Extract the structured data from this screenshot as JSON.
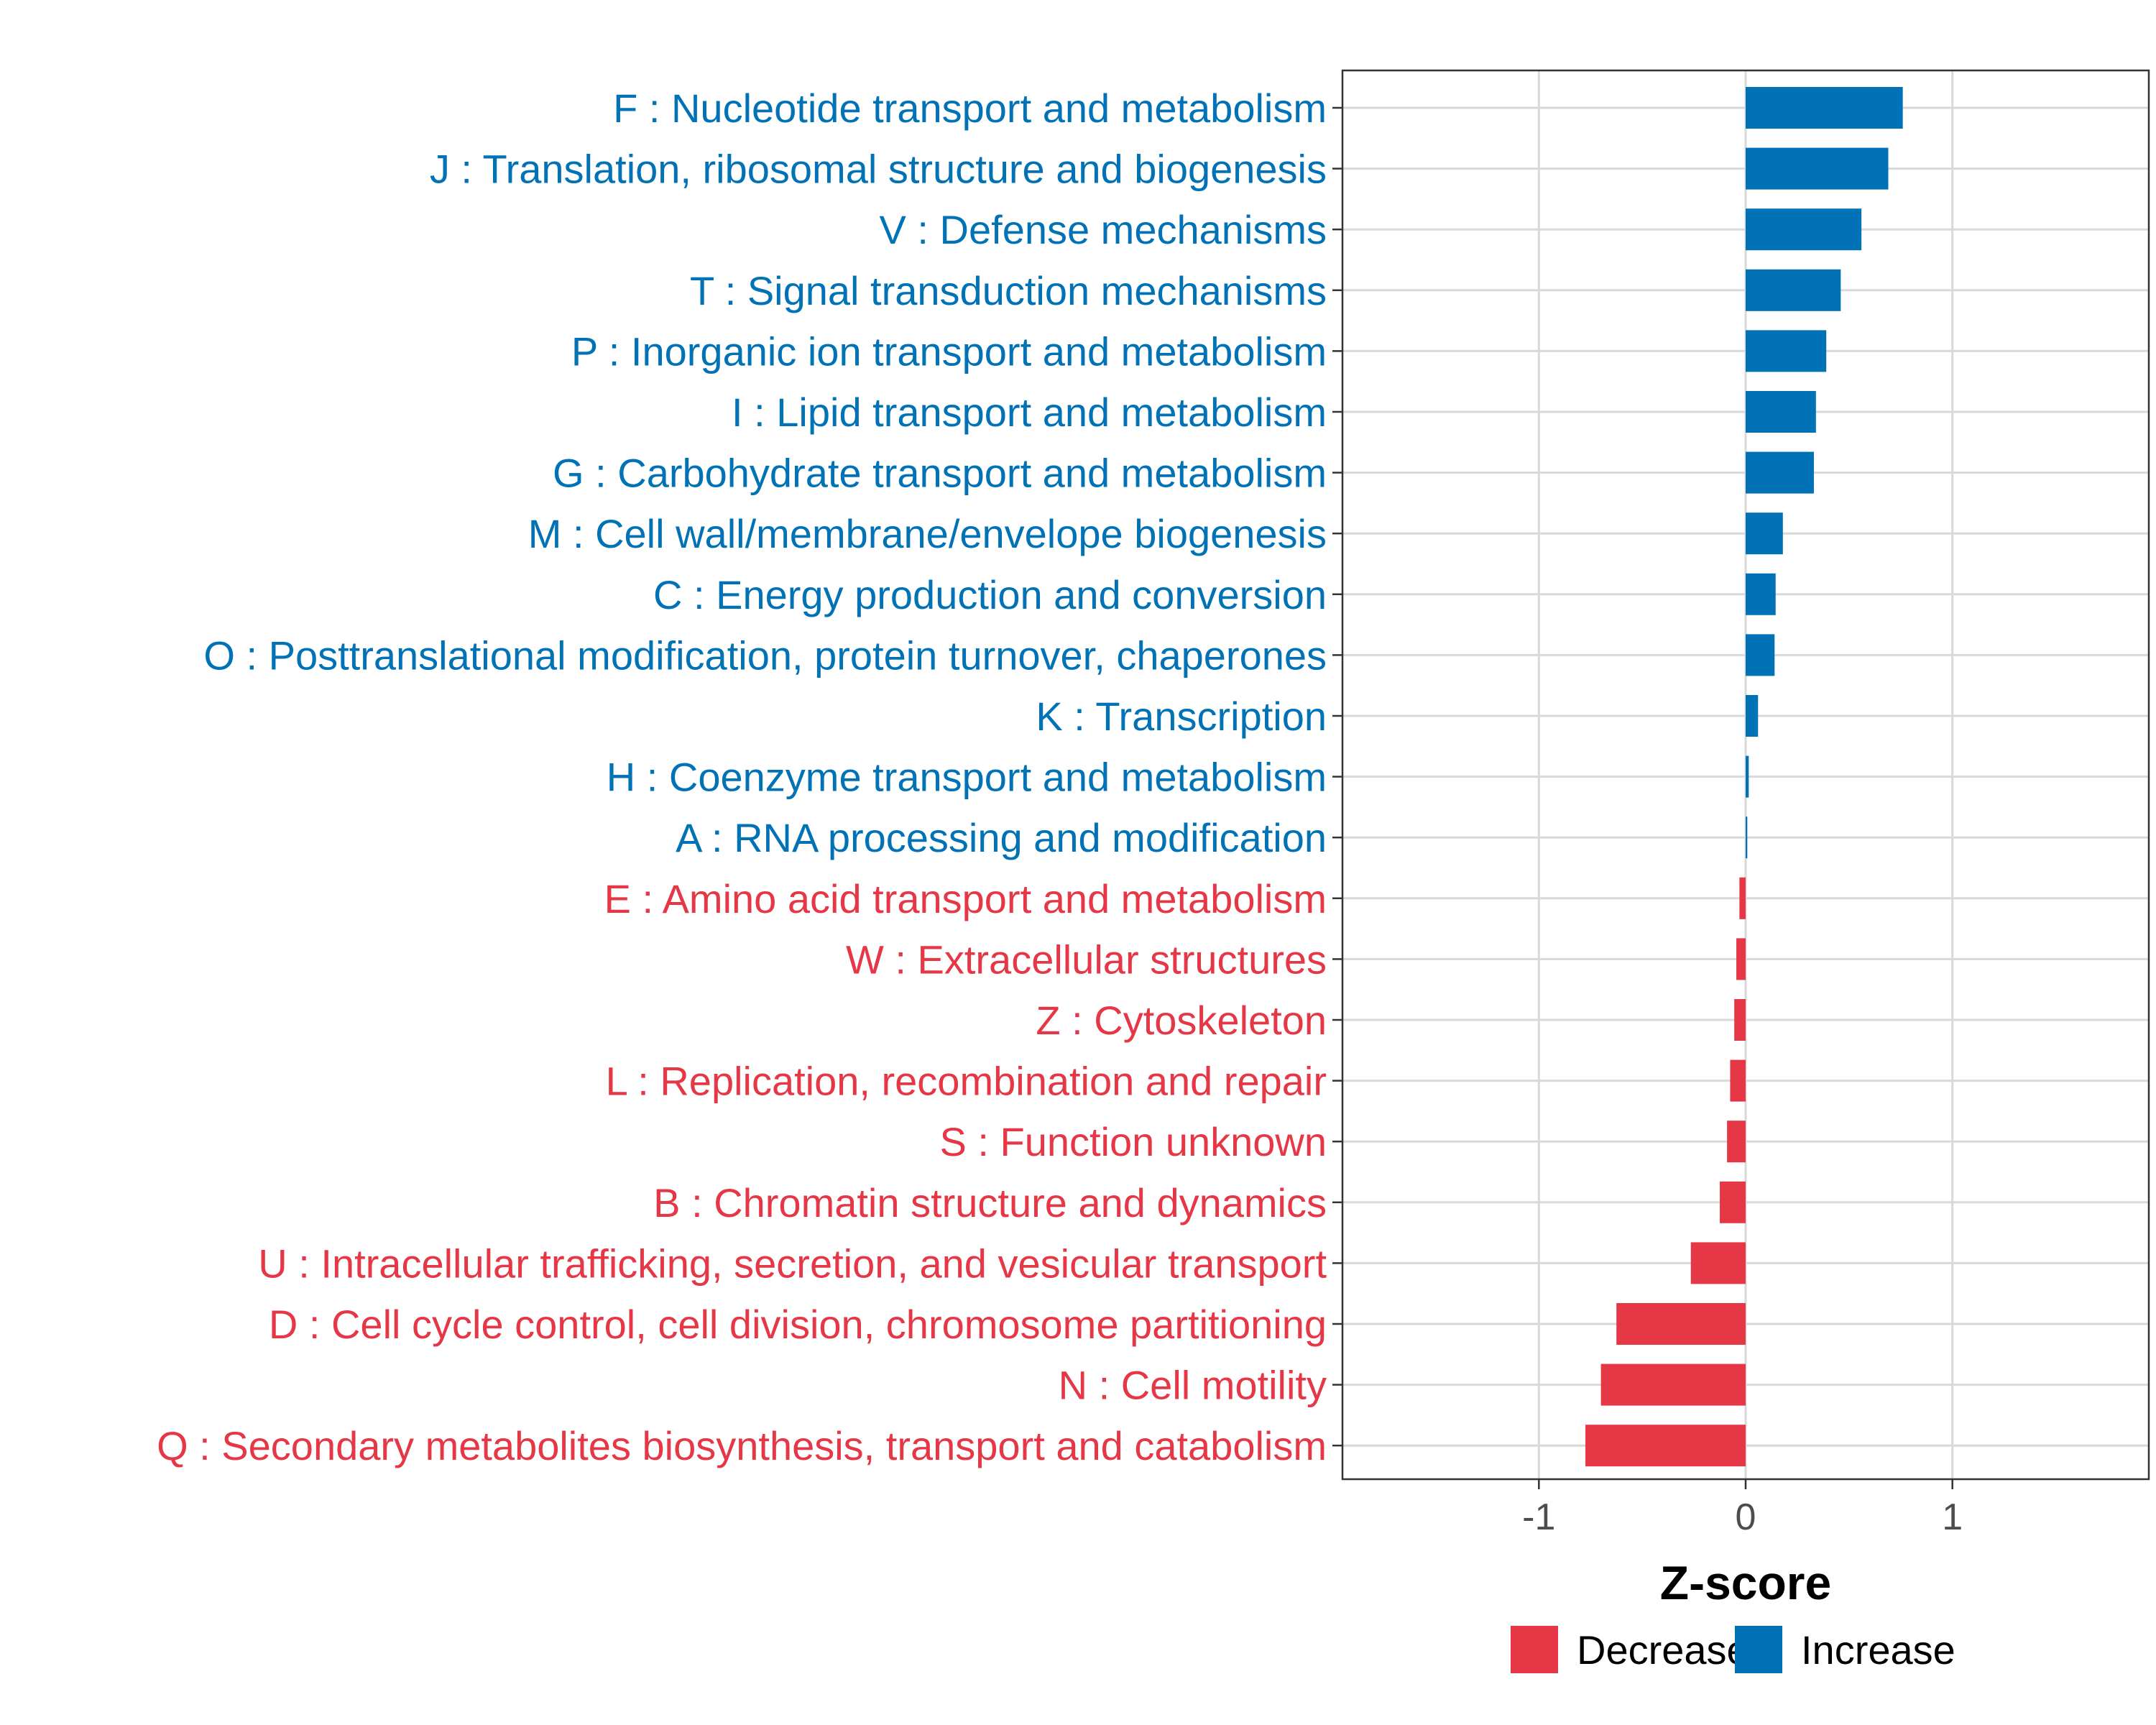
{
  "chart_data": {
    "type": "bar",
    "orientation": "horizontal",
    "xlabel": "Z-score",
    "ylabel": "",
    "xlim": [
      -1.95,
      1.95
    ],
    "x_ticks": [
      {
        "value": -1,
        "label": "-1"
      },
      {
        "value": 0,
        "label": "0"
      },
      {
        "value": 1,
        "label": "1"
      }
    ],
    "grid": true,
    "legend_position": "bottom",
    "colors": {
      "Increase": "#0072b5",
      "Decrease": "#e53746"
    },
    "legend": [
      {
        "name": "Decrease",
        "color": "#e53746"
      },
      {
        "name": "Increase",
        "color": "#0072b5"
      }
    ],
    "categories": [
      {
        "label": "F : Nucleotide transport and metabolism",
        "value": 0.76,
        "direction": "Increase"
      },
      {
        "label": "J : Translation, ribosomal structure and biogenesis",
        "value": 0.69,
        "direction": "Increase"
      },
      {
        "label": "V : Defense mechanisms",
        "value": 0.56,
        "direction": "Increase"
      },
      {
        "label": "T : Signal transduction mechanisms",
        "value": 0.46,
        "direction": "Increase"
      },
      {
        "label": "P : Inorganic ion transport and metabolism",
        "value": 0.39,
        "direction": "Increase"
      },
      {
        "label": "I : Lipid transport and metabolism",
        "value": 0.34,
        "direction": "Increase"
      },
      {
        "label": "G : Carbohydrate transport and metabolism",
        "value": 0.33,
        "direction": "Increase"
      },
      {
        "label": "M : Cell wall/membrane/envelope biogenesis",
        "value": 0.18,
        "direction": "Increase"
      },
      {
        "label": "C : Energy production and conversion",
        "value": 0.145,
        "direction": "Increase"
      },
      {
        "label": "O : Posttranslational modification, protein turnover, chaperones",
        "value": 0.14,
        "direction": "Increase"
      },
      {
        "label": "K : Transcription",
        "value": 0.06,
        "direction": "Increase"
      },
      {
        "label": "H : Coenzyme transport and metabolism",
        "value": 0.015,
        "direction": "Increase"
      },
      {
        "label": "A : RNA processing and modification",
        "value": 0.008,
        "direction": "Increase"
      },
      {
        "label": "E : Amino acid transport and metabolism",
        "value": -0.03,
        "direction": "Decrease"
      },
      {
        "label": "W : Extracellular structures",
        "value": -0.045,
        "direction": "Decrease"
      },
      {
        "label": "Z : Cytoskeleton",
        "value": -0.055,
        "direction": "Decrease"
      },
      {
        "label": "L : Replication, recombination and repair",
        "value": -0.075,
        "direction": "Decrease"
      },
      {
        "label": "S : Function unknown",
        "value": -0.09,
        "direction": "Decrease"
      },
      {
        "label": "B : Chromatin structure and dynamics",
        "value": -0.125,
        "direction": "Decrease"
      },
      {
        "label": "U : Intracellular trafficking, secretion, and vesicular transport",
        "value": -0.265,
        "direction": "Decrease"
      },
      {
        "label": "D : Cell cycle control, cell division, chromosome partitioning",
        "value": -0.625,
        "direction": "Decrease"
      },
      {
        "label": "N : Cell motility",
        "value": -0.7,
        "direction": "Decrease"
      },
      {
        "label": "Q : Secondary metabolites biosynthesis, transport and catabolism",
        "value": -0.775,
        "direction": "Decrease"
      }
    ]
  }
}
